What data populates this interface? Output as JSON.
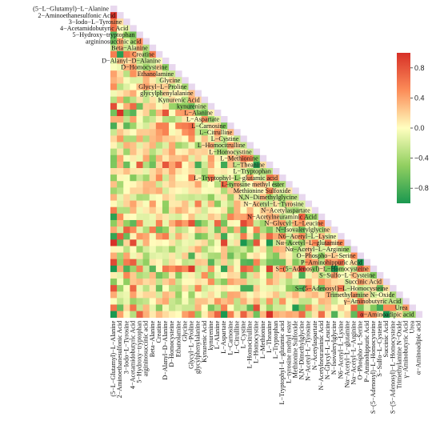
{
  "chart_data": {
    "type": "heatmap",
    "shape": "lower-triangle correlation matrix",
    "title": "",
    "xlabel": "",
    "ylabel": "",
    "labels": [
      "(5−L−Glutamyl)−L−Alanine",
      "2−Aminoethanesulfonic Acid",
      "3−Iodo−L−Tyrosine",
      "4−Acetamidobutyric Acid",
      "5−Hydroxy−tryptophan",
      "argininosuccinic acid",
      "Beta−Alanine",
      "Creatine",
      "D−Alanyl−D−Alanine",
      "D−Homocysteine",
      "Ethanolamine",
      "Glycine",
      "Glycyl−L−Proline",
      "glycylphenylalanine",
      "Kynurenic Acid",
      "kynurenine",
      "L−Alanine",
      "L−Aspartate",
      "L−Carnosine",
      "L−Citrulline",
      "L−Cystine",
      "L−Homocitrulline",
      "L−Homocystine",
      "L−Methionine",
      "L−Theanine",
      "L−Tryptophan",
      "L−Tryptophyl−L−glutamic acid",
      "L−tyrosine methyl ester",
      "Methionine Sulfoxide",
      "N,N−Dimethylglycine",
      "N−Acetyl−L−Tyrosine",
      "N−Acetylaspartate",
      "N−Acetylneuraminic Acid",
      "N−Glycyl−L−Leucine",
      "N−Isovalerylglycine",
      "N6−Acetyl−L−Lysine",
      "Nα−Acetyl−L−glutamine",
      "Nα−Acetyl−L−Arginine",
      "O−Phospho−L−Serine",
      "P−Aminohippuric Acid",
      "S−(5−Adenosyl)−L−Homocysteine",
      "S−Sulfo−L−Cysteine",
      "Succinic Acid",
      "S−(5−Adenosyl)−L−Homocysteine",
      "Trimethylamine N−Oxide",
      "γ−Aminobutyric Acid",
      "Urea",
      "α−Aminoadipic acid"
    ],
    "colorbar": {
      "ticks": [
        "0.8",
        "0.4",
        "0.0",
        "−0.4",
        "−0.8"
      ],
      "range": [
        -1,
        1
      ],
      "colors": [
        "#1a9850",
        "#91cf60",
        "#ffffbf",
        "#fc8d59",
        "#d73027"
      ]
    },
    "values_seed": 7
  }
}
